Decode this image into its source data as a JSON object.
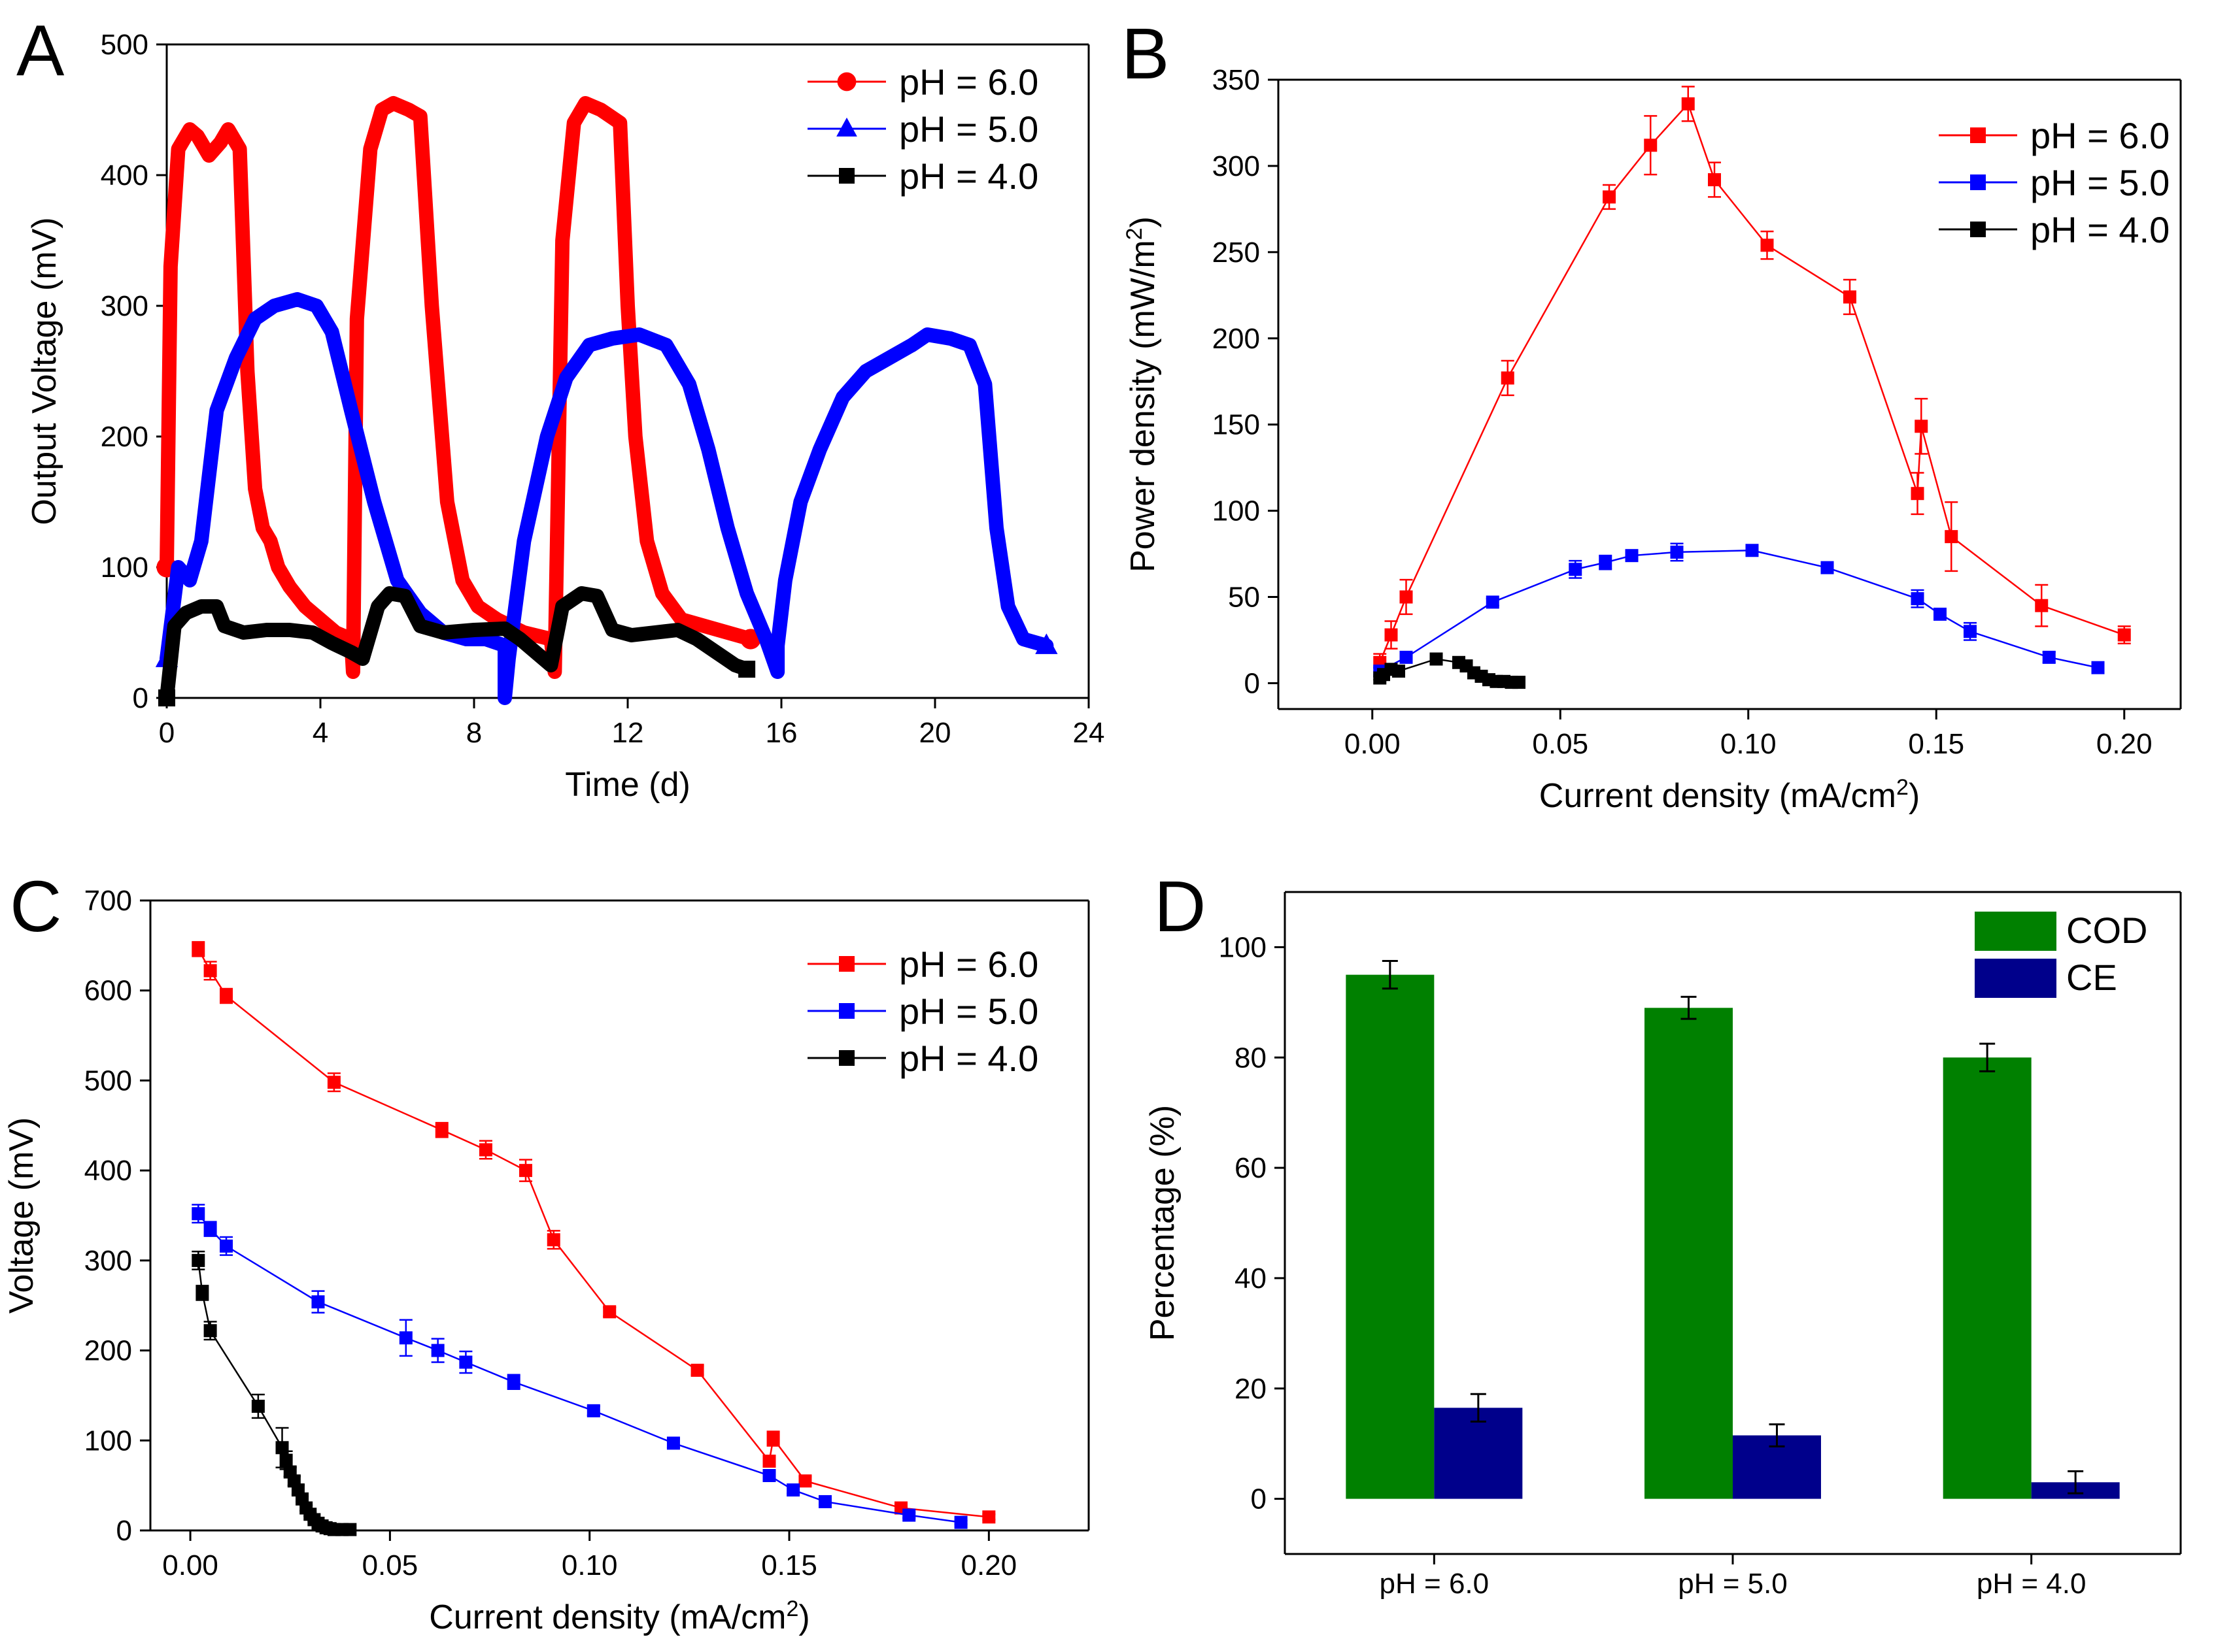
{
  "chart_data": [
    {
      "panel": "A",
      "type": "line",
      "xlabel": "Time (d)",
      "ylabel": "Output Voltage (mV)",
      "xlim": [
        0,
        24
      ],
      "ylim": [
        0,
        500
      ],
      "xticks": [
        "0",
        "4",
        "8",
        "12",
        "16",
        "20",
        "24"
      ],
      "yticks": [
        "0",
        "100",
        "200",
        "300",
        "400",
        "500"
      ],
      "legend_position": "top-right",
      "series": [
        {
          "name": "pH = 6.0",
          "color": "#ff0000",
          "marker": "circle",
          "x": [
            0,
            0.1,
            0.3,
            0.6,
            0.8,
            1.1,
            1.4,
            1.6,
            1.9,
            2.1,
            2.3,
            2.5,
            2.7,
            2.9,
            3.2,
            3.6,
            4.0,
            4.4,
            4.8,
            4.85,
            4.95,
            5.3,
            5.6,
            5.9,
            6.3,
            6.6,
            6.9,
            7.3,
            7.7,
            8.1,
            8.6,
            9.3,
            10.0,
            10.1,
            10.3,
            10.6,
            10.9,
            11.3,
            11.8,
            12.0,
            12.2,
            12.5,
            12.9,
            13.4,
            14.0,
            14.6,
            15.2
          ],
          "y": [
            100,
            330,
            420,
            435,
            430,
            415,
            425,
            435,
            420,
            250,
            160,
            130,
            120,
            100,
            85,
            70,
            60,
            50,
            45,
            20,
            290,
            420,
            450,
            455,
            450,
            445,
            300,
            150,
            90,
            70,
            60,
            50,
            45,
            20,
            350,
            440,
            455,
            450,
            440,
            300,
            200,
            120,
            80,
            60,
            55,
            50,
            45
          ]
        },
        {
          "name": "pH = 5.0",
          "color": "#0000ff",
          "marker": "triangle",
          "x": [
            0,
            0.3,
            0.6,
            0.9,
            1.3,
            1.8,
            2.3,
            2.8,
            3.4,
            3.9,
            4.3,
            4.8,
            5.4,
            6.0,
            6.6,
            7.2,
            7.8,
            8.3,
            8.8,
            8.8,
            8.9,
            9.3,
            9.9,
            10.4,
            11.0,
            11.6,
            12.3,
            13.0,
            13.6,
            14.1,
            14.6,
            15.1,
            15.6,
            15.9,
            15.9,
            16.1,
            16.5,
            17.0,
            17.6,
            18.2,
            18.8,
            19.4,
            19.8,
            20.4,
            20.9,
            21.3,
            21.6,
            21.9,
            22.3,
            22.9
          ],
          "y": [
            30,
            100,
            90,
            120,
            220,
            260,
            290,
            300,
            305,
            300,
            280,
            220,
            150,
            90,
            65,
            50,
            45,
            45,
            40,
            0,
            30,
            120,
            200,
            245,
            270,
            275,
            278,
            270,
            240,
            190,
            130,
            80,
            45,
            20,
            40,
            90,
            150,
            190,
            230,
            250,
            260,
            270,
            278,
            275,
            270,
            240,
            130,
            70,
            45,
            40
          ]
        },
        {
          "name": "pH = 4.0",
          "color": "#000000",
          "marker": "square",
          "x": [
            0,
            0.2,
            0.5,
            0.9,
            1.3,
            1.5,
            2.0,
            2.6,
            3.2,
            3.8,
            4.3,
            4.8,
            5.1,
            5.5,
            5.8,
            6.2,
            6.6,
            7.2,
            8.0,
            8.8,
            9.2,
            9.6,
            10.0,
            10.3,
            10.8,
            11.2,
            11.6,
            12.1,
            12.7,
            13.3,
            13.8,
            14.3,
            14.8,
            15.1
          ],
          "y": [
            0,
            55,
            65,
            70,
            70,
            55,
            50,
            52,
            52,
            50,
            42,
            35,
            30,
            70,
            80,
            78,
            55,
            50,
            52,
            53,
            45,
            35,
            25,
            70,
            80,
            78,
            52,
            48,
            50,
            52,
            45,
            35,
            25,
            22
          ]
        }
      ]
    },
    {
      "panel": "B",
      "type": "line",
      "xlabel_main": "Current density (mA/cm",
      "xlabel_sup": "2",
      "xlabel_tail": ")",
      "ylabel_main": "Power density (mW/m",
      "ylabel_sup": "2",
      "ylabel_tail": ")",
      "xlim": [
        -0.025,
        0.215
      ],
      "ylim": [
        -15,
        350
      ],
      "xticks": [
        "0.00",
        "0.05",
        "0.10",
        "0.15",
        "0.20"
      ],
      "yticks": [
        "0",
        "50",
        "100",
        "150",
        "200",
        "250",
        "300",
        "350"
      ],
      "legend_position": "top-right",
      "series": [
        {
          "name": "pH = 6.0",
          "color": "#ff0000",
          "marker": "square",
          "x": [
            0.002,
            0.005,
            0.009,
            0.036,
            0.063,
            0.074,
            0.084,
            0.091,
            0.105,
            0.127,
            0.145,
            0.146,
            0.154,
            0.178,
            0.2
          ],
          "y": [
            12,
            28,
            50,
            177,
            282,
            312,
            336,
            292,
            254,
            224,
            110,
            149,
            85,
            45,
            28
          ],
          "err": [
            5,
            8,
            10,
            10,
            7,
            17,
            10,
            10,
            8,
            10,
            12,
            16,
            20,
            12,
            5
          ]
        },
        {
          "name": "pH = 5.0",
          "color": "#0000ff",
          "marker": "square",
          "x": [
            0.002,
            0.009,
            0.032,
            0.054,
            0.062,
            0.069,
            0.081,
            0.101,
            0.121,
            0.145,
            0.151,
            0.159,
            0.18,
            0.193
          ],
          "y": [
            7,
            15,
            47,
            66,
            70,
            74,
            76,
            77,
            67,
            49,
            40,
            30,
            15,
            9
          ],
          "err": [
            2,
            3,
            2,
            5,
            4,
            3,
            5,
            3,
            2,
            5,
            3,
            5,
            3,
            2
          ]
        },
        {
          "name": "pH = 4.0",
          "color": "#000000",
          "marker": "square",
          "x": [
            0.002,
            0.003,
            0.005,
            0.007,
            0.017,
            0.023,
            0.025,
            0.027,
            0.029,
            0.031,
            0.033,
            0.035,
            0.037,
            0.039
          ],
          "y": [
            3,
            5,
            8,
            7,
            14,
            12,
            10,
            6,
            4,
            2,
            1,
            1,
            0.5,
            0.5
          ],
          "err": [
            1,
            1,
            1,
            1,
            1,
            2,
            1,
            1,
            1,
            0,
            0,
            0,
            0,
            0
          ]
        }
      ]
    },
    {
      "panel": "C",
      "type": "line",
      "xlabel_main": "Current density (mA/cm",
      "xlabel_sup": "2",
      "xlabel_tail": ")",
      "ylabel": "Voltage (mV)",
      "xlim": [
        -0.01,
        0.225
      ],
      "ylim": [
        0,
        700
      ],
      "xticks": [
        "0.00",
        "0.05",
        "0.10",
        "0.15",
        "0.20"
      ],
      "yticks": [
        "0",
        "100",
        "200",
        "300",
        "400",
        "500",
        "600",
        "700"
      ],
      "legend_position": "top-right",
      "series": [
        {
          "name": "pH = 6.0",
          "color": "#ff0000",
          "marker": "square",
          "x": [
            0.002,
            0.005,
            0.009,
            0.036,
            0.063,
            0.074,
            0.084,
            0.091,
            0.105,
            0.127,
            0.145,
            0.146,
            0.154,
            0.178,
            0.2
          ],
          "y": [
            646,
            622,
            594,
            498,
            445,
            423,
            400,
            323,
            243,
            178,
            77,
            102,
            55,
            25,
            15
          ],
          "err": [
            8,
            10,
            8,
            10,
            8,
            10,
            12,
            10,
            5,
            5,
            5,
            8,
            5,
            3,
            3
          ]
        },
        {
          "name": "pH = 5.0",
          "color": "#0000ff",
          "marker": "square",
          "x": [
            0.002,
            0.005,
            0.009,
            0.032,
            0.054,
            0.062,
            0.069,
            0.081,
            0.101,
            0.121,
            0.145,
            0.151,
            0.159,
            0.18,
            0.193
          ],
          "y": [
            352,
            335,
            316,
            254,
            214,
            200,
            187,
            165,
            133,
            97,
            61,
            45,
            32,
            17,
            9
          ],
          "err": [
            10,
            8,
            10,
            12,
            20,
            13,
            12,
            8,
            5,
            5,
            5,
            4,
            3,
            3,
            2
          ]
        },
        {
          "name": "pH = 4.0",
          "color": "#000000",
          "marker": "square",
          "x": [
            0.002,
            0.003,
            0.005,
            0.017,
            0.023,
            0.024,
            0.025,
            0.026,
            0.027,
            0.028,
            0.029,
            0.03,
            0.031,
            0.032,
            0.033,
            0.034,
            0.035,
            0.036,
            0.038,
            0.04
          ],
          "y": [
            300,
            264,
            222,
            138,
            92,
            78,
            65,
            55,
            45,
            35,
            25,
            18,
            12,
            8,
            5,
            3,
            2,
            1,
            1,
            1
          ],
          "err": [
            10,
            8,
            10,
            13,
            22,
            10,
            5,
            5,
            5,
            3,
            3,
            2,
            2,
            1,
            1,
            1,
            1,
            0,
            0,
            0
          ]
        }
      ]
    },
    {
      "panel": "D",
      "type": "bar",
      "ylabel": "Percentage (%)",
      "ylim": [
        -10,
        110
      ],
      "yticks": [
        "0",
        "20",
        "40",
        "60",
        "80",
        "100"
      ],
      "categories": [
        "pH = 6.0",
        "pH = 5.0",
        "pH = 4.0"
      ],
      "legend_position": "top-right",
      "series": [
        {
          "name": "COD",
          "color": "#008000",
          "values": [
            95,
            89,
            80
          ],
          "err": [
            2.5,
            2,
            2.5
          ]
        },
        {
          "name": "CE",
          "color": "#00008b",
          "values": [
            16.5,
            11.5,
            3
          ],
          "err": [
            2.5,
            2,
            2
          ]
        }
      ]
    }
  ],
  "panel_labels": {
    "A": "A",
    "B": "B",
    "C": "C",
    "D": "D"
  }
}
